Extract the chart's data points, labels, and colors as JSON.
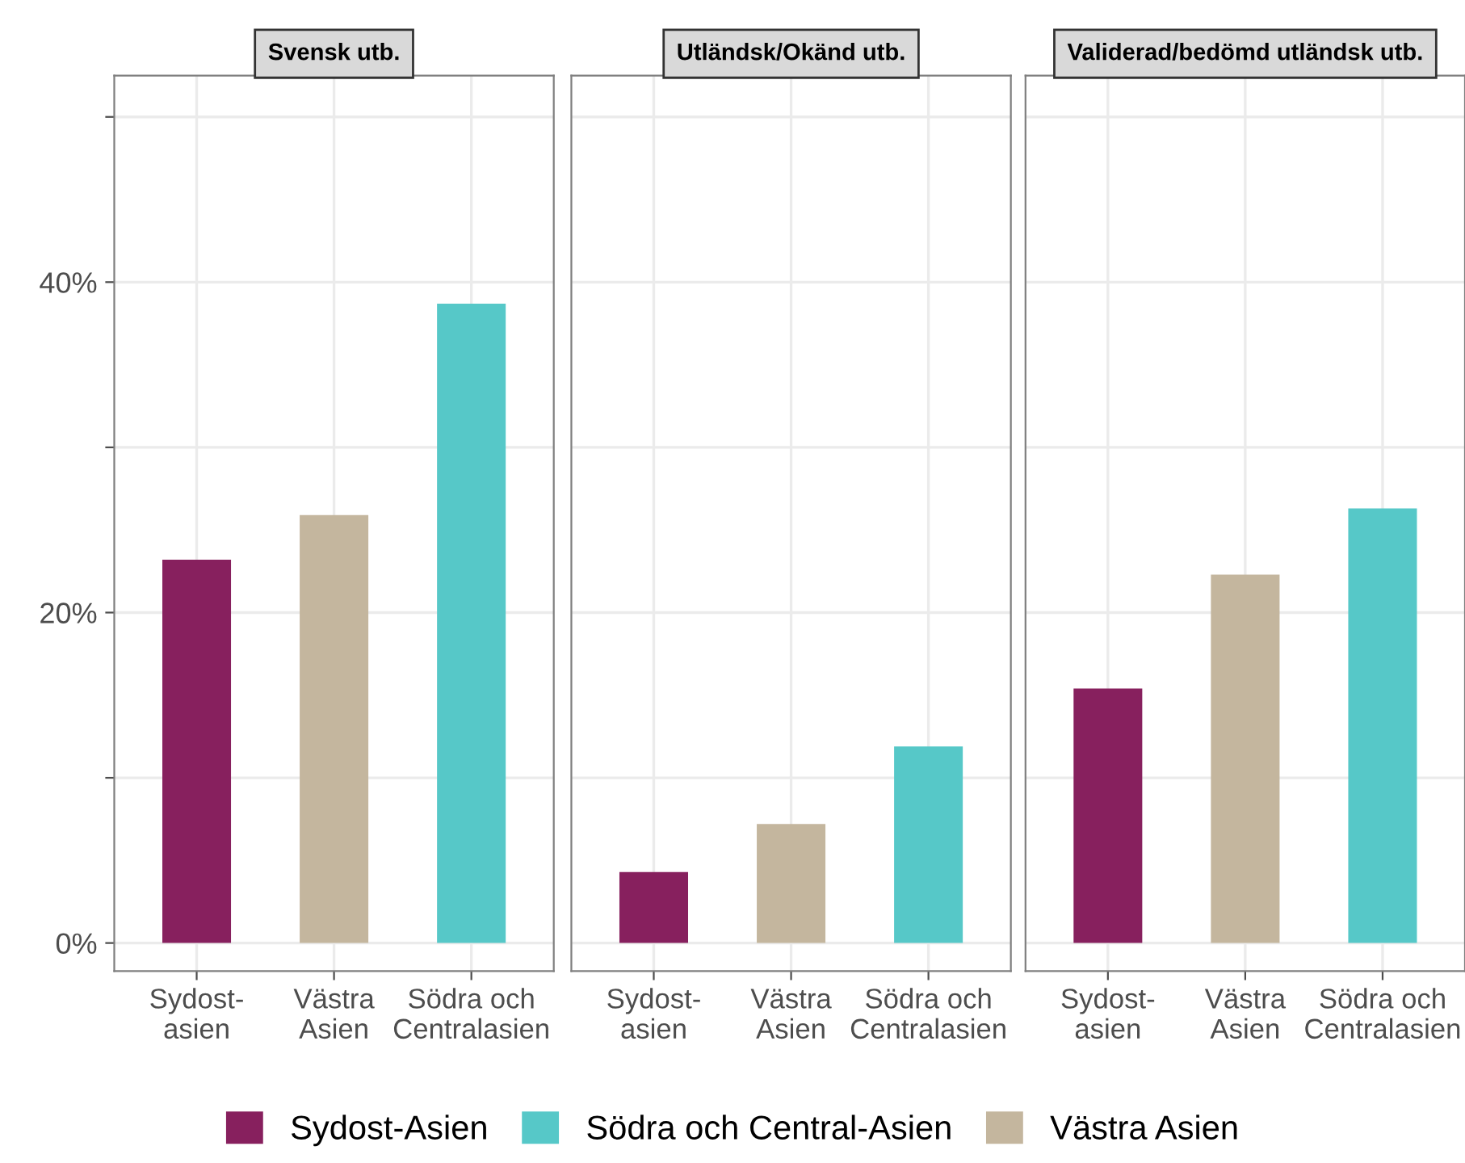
{
  "chart_data": [
    {
      "type": "bar",
      "title": "Svensk utb.",
      "categories": [
        "Sydost-\nasien",
        "Västra\nAsien",
        "Södra och\nCentralasien"
      ],
      "values": [
        23.2,
        25.9,
        38.7
      ],
      "colors": [
        "#87205e",
        "#c4b69e",
        "#56c8c8"
      ],
      "ylim": [
        -1.7,
        52.5
      ],
      "yticks": [
        {
          "value": 0,
          "label": "0%"
        },
        {
          "value": 10,
          "label": null
        },
        {
          "value": 20,
          "label": "20%"
        },
        {
          "value": 30,
          "label": null
        },
        {
          "value": 40,
          "label": "40%"
        },
        {
          "value": 50,
          "label": null
        }
      ],
      "grid": true
    },
    {
      "type": "bar",
      "title": "Utländsk/Okänd utb.",
      "stacked": true,
      "categories": [
        "Sydost-\nasien",
        "Västra\nAsien",
        "Södra och\nCentralasien"
      ],
      "series": [
        {
          "name": "Sydost-Asien",
          "color": "#87205e",
          "values": [
            4.3,
            null,
            null
          ]
        },
        {
          "name": "Södra och Central-Asien",
          "color": "#56c8c8",
          "values": [
            null,
            null,
            11.9
          ]
        },
        {
          "name": "Västra Asien",
          "color": "#c4b69e",
          "values": [
            null,
            7.2,
            null
          ]
        }
      ],
      "ylim": [
        -1.7,
        52.5
      ],
      "yticks": [
        0,
        10,
        20,
        30,
        40,
        50
      ],
      "grid": true,
      "tick_labels": "x",
      "legend": "bottom"
    },
    {
      "type": "bar",
      "title": "Validerad/bedömd utländsk utb.",
      "categories": [
        "Sydost-\nasien",
        "Västra\nAsien",
        "Södra och\nCentralasien"
      ],
      "values": [
        15.4,
        22.3,
        26.3
      ],
      "colors": [
        "#87205e",
        "#c4b69e",
        "#56c8c8"
      ],
      "ylim": [
        -1.7,
        52.5
      ],
      "yticks": [
        0,
        10,
        20,
        30,
        40,
        50
      ],
      "grid": true,
      "tick_labels": "x"
    }
  ]
}
